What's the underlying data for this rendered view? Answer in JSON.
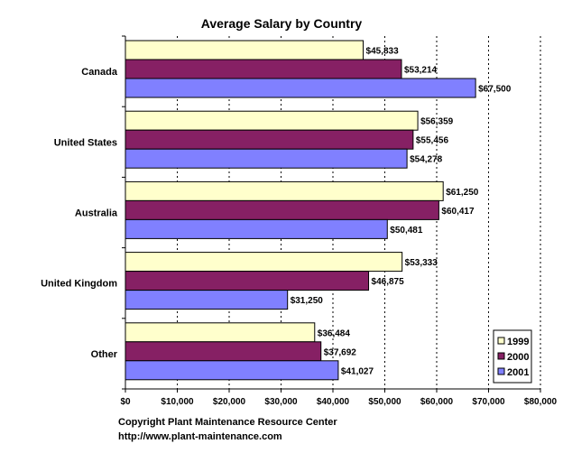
{
  "chart_data": {
    "type": "bar",
    "orientation": "horizontal",
    "title": "Average Salary by Country",
    "xlabel": "",
    "ylabel": "",
    "categories": [
      "Canada",
      "United States",
      "Australia",
      "United Kingdom",
      "Other"
    ],
    "series": [
      {
        "name": "1999",
        "color": "#FFFFCC",
        "values": [
          45833,
          56359,
          61250,
          53333,
          36484
        ],
        "labels": [
          "$45,833",
          "$56,359",
          "$61,250",
          "$53,333",
          "$36,484"
        ]
      },
      {
        "name": "2000",
        "color": "#862064",
        "values": [
          53214,
          55456,
          60417,
          46875,
          37692
        ],
        "labels": [
          "$53,214",
          "$55,456",
          "$60,417",
          "$46,875",
          "$37,692"
        ]
      },
      {
        "name": "2001",
        "color": "#8080FF",
        "values": [
          67500,
          54278,
          50481,
          31250,
          41027
        ],
        "labels": [
          "$67,500",
          "$54,278",
          "$50,481",
          "$31,250",
          "$41,027"
        ]
      }
    ],
    "xlim": [
      0,
      80000
    ],
    "ticks": [
      0,
      10000,
      20000,
      30000,
      40000,
      50000,
      60000,
      70000,
      80000
    ],
    "tick_labels": [
      "$0",
      "$10,000",
      "$20,000",
      "$30,000",
      "$40,000",
      "$50,000",
      "$60,000",
      "$70,000",
      "$80,000"
    ],
    "grid": "vertical-dotted",
    "legend_position": "bottom-right"
  },
  "footer": {
    "line1": "Copyright Plant Maintenance Resource Center",
    "line2": "http://www.plant-maintenance.com"
  }
}
